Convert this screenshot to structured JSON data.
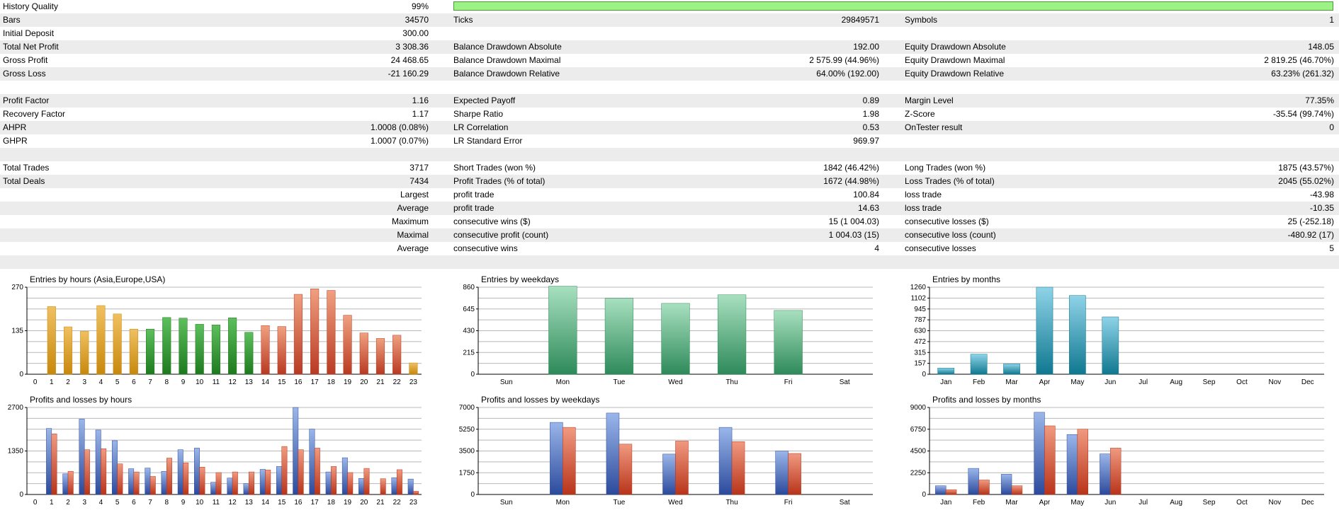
{
  "stats": {
    "history_quality_label": "History Quality",
    "history_quality_value": "99%",
    "history_quality_fill": 1.0,
    "rows": [
      {
        "l1": "Bars",
        "v1": "34570",
        "l2": "Ticks",
        "v2": "29849571",
        "l3": "Symbols",
        "v3": "1"
      },
      {
        "l1": "Initial Deposit",
        "v1": "300.00",
        "l2": "",
        "v2": "",
        "l3": "",
        "v3": ""
      },
      {
        "l1": "Total Net Profit",
        "v1": "3 308.36",
        "l2": "Balance Drawdown Absolute",
        "v2": "192.00",
        "l3": "Equity Drawdown Absolute",
        "v3": "148.05"
      },
      {
        "l1": "Gross Profit",
        "v1": "24 468.65",
        "l2": "Balance Drawdown Maximal",
        "v2": "2 575.99 (44.96%)",
        "l3": "Equity Drawdown Maximal",
        "v3": "2 819.25 (46.70%)"
      },
      {
        "l1": "Gross Loss",
        "v1": "-21 160.29",
        "l2": "Balance Drawdown Relative",
        "v2": "64.00% (192.00)",
        "l3": "Equity Drawdown Relative",
        "v3": "63.23% (261.32)"
      },
      {
        "l1": "",
        "v1": "",
        "l2": "",
        "v2": "",
        "l3": "",
        "v3": ""
      },
      {
        "l1": "Profit Factor",
        "v1": "1.16",
        "l2": "Expected Payoff",
        "v2": "0.89",
        "l3": "Margin Level",
        "v3": "77.35%"
      },
      {
        "l1": "Recovery Factor",
        "v1": "1.17",
        "l2": "Sharpe Ratio",
        "v2": "1.98",
        "l3": "Z-Score",
        "v3": "-35.54 (99.74%)"
      },
      {
        "l1": "AHPR",
        "v1": "1.0008 (0.08%)",
        "l2": "LR Correlation",
        "v2": "0.53",
        "l3": "OnTester result",
        "v3": "0"
      },
      {
        "l1": "GHPR",
        "v1": "1.0007 (0.07%)",
        "l2": "LR Standard Error",
        "v2": "969.97",
        "l3": "",
        "v3": ""
      },
      {
        "l1": "",
        "v1": "",
        "l2": "",
        "v2": "",
        "l3": "",
        "v3": ""
      },
      {
        "l1": "Total Trades",
        "v1": "3717",
        "l2": "Short Trades (won %)",
        "v2": "1842 (46.42%)",
        "l3": "Long Trades (won %)",
        "v3": "1875 (43.57%)"
      },
      {
        "l1": "Total Deals",
        "v1": "7434",
        "l2": "Profit Trades (% of total)",
        "v2": "1672 (44.98%)",
        "l3": "Loss Trades (% of total)",
        "v3": "2045 (55.02%)"
      },
      {
        "l1": "",
        "v1": "Largest",
        "l2": "profit trade",
        "v2": "100.84",
        "l3": "loss trade",
        "v3": "-43.98"
      },
      {
        "l1": "",
        "v1": "Average",
        "l2": "profit trade",
        "v2": "14.63",
        "l3": "loss trade",
        "v3": "-10.35"
      },
      {
        "l1": "",
        "v1": "Maximum",
        "l2": "consecutive wins ($)",
        "v2": "15 (1 004.03)",
        "l3": "consecutive losses ($)",
        "v3": "25 (-252.18)"
      },
      {
        "l1": "",
        "v1": "Maximal",
        "l2": "consecutive profit (count)",
        "v2": "1 004.03 (15)",
        "l3": "consecutive loss (count)",
        "v3": "-480.92 (17)"
      },
      {
        "l1": "",
        "v1": "Average",
        "l2": "consecutive wins",
        "v2": "4",
        "l3": "consecutive losses",
        "v3": "5"
      },
      {
        "l1": "",
        "v1": "",
        "l2": "",
        "v2": "",
        "l3": "",
        "v3": ""
      }
    ]
  },
  "colors": {
    "orange": [
      "#f0c060",
      "#c8880c"
    ],
    "green": [
      "#5cbf5c",
      "#1e7a1e"
    ],
    "red": [
      "#f0a080",
      "#b83a22"
    ],
    "teal": [
      "#a8e0bf",
      "#2e8a5a"
    ],
    "cyan": [
      "#8fd3e8",
      "#0f7890"
    ],
    "blue": [
      "#9ab6ea",
      "#2c4a9c"
    ],
    "redbar": [
      "#f09a80",
      "#b8341a"
    ],
    "grid": "#b8b8b8"
  },
  "chart_data": [
    {
      "type": "bar",
      "title": "Entries by hours (Asia,Europe,USA)",
      "categories": [
        "0",
        "1",
        "2",
        "3",
        "4",
        "5",
        "6",
        "7",
        "8",
        "9",
        "10",
        "11",
        "12",
        "13",
        "14",
        "15",
        "16",
        "17",
        "18",
        "19",
        "20",
        "21",
        "22",
        "23"
      ],
      "values": [
        0,
        210,
        147,
        133,
        213,
        187,
        140,
        140,
        176,
        174,
        155,
        153,
        175,
        130,
        151,
        148,
        248,
        265,
        260,
        183,
        128,
        111,
        121,
        35
      ],
      "color_by_index": [
        "orange",
        "orange",
        "orange",
        "orange",
        "orange",
        "orange",
        "orange",
        "green",
        "green",
        "green",
        "green",
        "green",
        "green",
        "green",
        "red",
        "red",
        "red",
        "red",
        "red",
        "red",
        "red",
        "red",
        "red",
        "orange"
      ],
      "ylim": [
        0,
        270
      ],
      "yticks": [
        "0",
        "135",
        "270"
      ]
    },
    {
      "type": "bar",
      "title": "Entries by weekdays",
      "categories": [
        "Sun",
        "Mon",
        "Tue",
        "Wed",
        "Thu",
        "Fri",
        "Sat"
      ],
      "values": [
        0,
        870,
        750,
        700,
        785,
        630,
        0
      ],
      "color": "teal",
      "ylim": [
        0,
        860
      ],
      "yticks": [
        "0",
        "215",
        "430",
        "645",
        "860"
      ]
    },
    {
      "type": "bar",
      "title": "Entries by months",
      "categories": [
        "Jan",
        "Feb",
        "Mar",
        "Apr",
        "May",
        "Jun",
        "Jul",
        "Aug",
        "Sep",
        "Oct",
        "Nov",
        "Dec"
      ],
      "values": [
        90,
        290,
        150,
        1260,
        1140,
        830,
        0,
        0,
        0,
        0,
        0,
        0
      ],
      "color": "cyan",
      "ylim": [
        0,
        1260
      ],
      "yticks": [
        "0",
        "157",
        "315",
        "472",
        "630",
        "787",
        "945",
        "1102",
        "1260"
      ]
    },
    {
      "type": "bar",
      "title": "Profits and losses by hours",
      "categories": [
        "0",
        "1",
        "2",
        "3",
        "4",
        "5",
        "6",
        "7",
        "8",
        "9",
        "10",
        "11",
        "12",
        "13",
        "14",
        "15",
        "16",
        "17",
        "18",
        "19",
        "20",
        "21",
        "22",
        "23"
      ],
      "series": [
        {
          "name": "profits",
          "color": "blue",
          "values": [
            0,
            2050,
            640,
            2340,
            2000,
            1670,
            800,
            820,
            720,
            1390,
            1440,
            380,
            510,
            340,
            780,
            870,
            2700,
            2030,
            700,
            1140,
            500,
            0,
            520,
            480
          ]
        },
        {
          "name": "losses",
          "color": "redbar",
          "values": [
            0,
            1880,
            720,
            1390,
            1420,
            950,
            700,
            560,
            1130,
            980,
            850,
            680,
            700,
            700,
            760,
            1490,
            1390,
            1440,
            870,
            680,
            810,
            490,
            770,
            100
          ]
        }
      ],
      "ylim": [
        0,
        2700
      ],
      "yticks": [
        "0",
        "1350",
        "2700"
      ]
    },
    {
      "type": "bar",
      "title": "Profits and losses by weekdays",
      "categories": [
        "Sun",
        "Mon",
        "Tue",
        "Wed",
        "Thu",
        "Fri",
        "Sat"
      ],
      "series": [
        {
          "name": "profits",
          "color": "blue",
          "values": [
            0,
            5800,
            6550,
            3250,
            5400,
            3500,
            0
          ]
        },
        {
          "name": "losses",
          "color": "redbar",
          "values": [
            0,
            5400,
            4050,
            4300,
            4250,
            3300,
            0
          ]
        }
      ],
      "ylim": [
        0,
        7000
      ],
      "yticks": [
        "0",
        "1750",
        "3500",
        "5250",
        "7000"
      ]
    },
    {
      "type": "bar",
      "title": "Profits and losses by months",
      "categories": [
        "Jan",
        "Feb",
        "Mar",
        "Apr",
        "May",
        "Jun",
        "Jul",
        "Aug",
        "Sep",
        "Oct",
        "Nov",
        "Dec"
      ],
      "series": [
        {
          "name": "profits",
          "color": "blue",
          "values": [
            900,
            2700,
            2100,
            8500,
            6200,
            4200,
            0,
            0,
            0,
            0,
            0,
            0
          ]
        },
        {
          "name": "losses",
          "color": "redbar",
          "values": [
            500,
            1500,
            900,
            7100,
            6750,
            4800,
            0,
            0,
            0,
            0,
            0,
            0
          ]
        }
      ],
      "ylim": [
        0,
        9000
      ],
      "yticks": [
        "0",
        "2250",
        "4500",
        "6750",
        "9000"
      ]
    }
  ]
}
